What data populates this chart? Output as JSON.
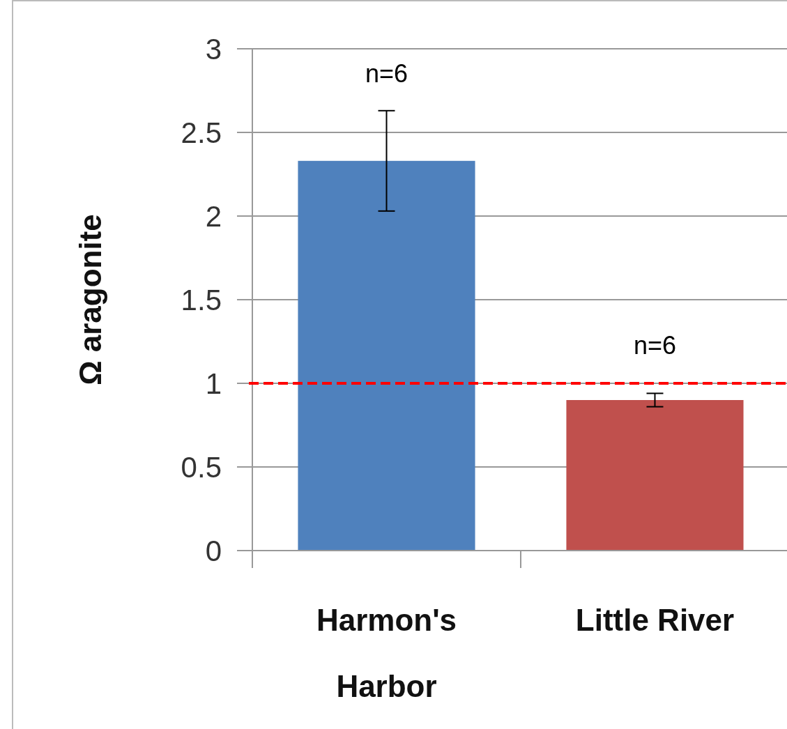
{
  "chart_data": {
    "type": "bar",
    "categories": [
      "Harmon's Harbor",
      "Little River"
    ],
    "values": [
      2.33,
      0.9
    ],
    "colors": [
      "#4f81bd",
      "#c0504d"
    ],
    "errors": [
      0.3,
      0.04
    ],
    "ylabel": "Ω aragonite",
    "ylim": [
      0,
      3
    ],
    "yticks": [
      0,
      0.5,
      1,
      1.5,
      2,
      2.5,
      3
    ],
    "grid": "y",
    "ref_lines": [
      {
        "axis": "y",
        "value": 1,
        "color": "#ff0000",
        "line_style": "dashed"
      }
    ],
    "annotations": [
      "n=6",
      "n=6"
    ]
  }
}
